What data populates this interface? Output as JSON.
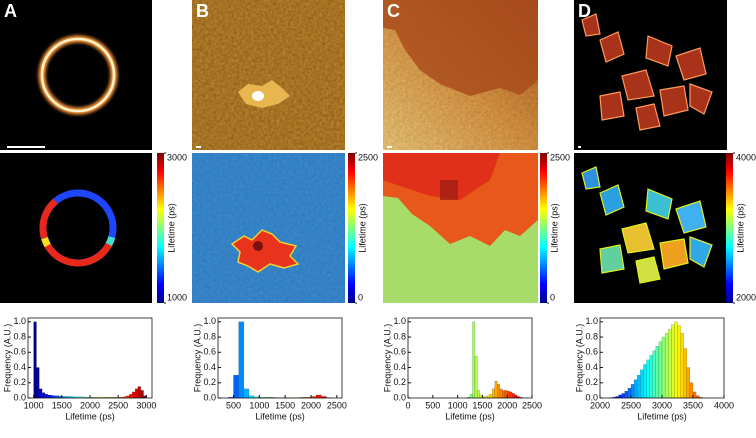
{
  "chart_data": [
    {
      "type": "histogram",
      "panel": "A",
      "xlabel": "Lifetime (ps)",
      "ylabel": "Frequency (A.U.)",
      "colormap": "jet",
      "colorbar": {
        "ticks": [
          1000,
          3000
        ],
        "label": "Lifetime (ps)"
      },
      "bins": [
        1000,
        1050,
        1100,
        1150,
        1200,
        1250,
        1300,
        1350,
        1400,
        1450,
        1500,
        1550,
        1600,
        1650,
        1700,
        1750,
        1800,
        1850,
        1900,
        1950,
        2000,
        2050,
        2100,
        2150,
        2200,
        2250,
        2300,
        2350,
        2400,
        2450,
        2500,
        2550,
        2600,
        2650,
        2700,
        2750,
        2800,
        2850,
        2900,
        2950,
        3000
      ],
      "values": [
        1.0,
        0.4,
        0.12,
        0.07,
        0.05,
        0.04,
        0.035,
        0.03,
        0.03,
        0.025,
        0.02,
        0.02,
        0.02,
        0.02,
        0.015,
        0.015,
        0.015,
        0.015,
        0.01,
        0.01,
        0.01,
        0.01,
        0.01,
        0.01,
        0.01,
        0.01,
        0.01,
        0.01,
        0.01,
        0.01,
        0.01,
        0.01,
        0.02,
        0.03,
        0.05,
        0.08,
        0.12,
        0.15,
        0.1,
        0.03
      ],
      "xlim": [
        900,
        3100
      ],
      "xticks": [
        1000,
        1500,
        2000,
        2500,
        3000
      ],
      "ylim": [
        0,
        1.05
      ],
      "yticks": [
        {
          "value": 0,
          "label": "0.0"
        },
        {
          "value": 0.2,
          "label": "0.2"
        },
        {
          "value": 0.4,
          "label": "0.4"
        },
        {
          "value": 0.6,
          "label": "0.6"
        },
        {
          "value": 0.8,
          "label": "0.8"
        },
        {
          "value": 1,
          "label": "1.0"
        }
      ]
    },
    {
      "type": "histogram",
      "panel": "B",
      "xlabel": "Lifetime (ps)",
      "ylabel": "Frequency (A.U.)",
      "colormap": "jet",
      "colorbar": {
        "ticks": [
          0,
          2500
        ],
        "label": "Lifetime (ps)"
      },
      "bins": [
        300,
        400,
        500,
        600,
        700,
        800,
        900,
        1000,
        1100,
        1200,
        1300,
        1400,
        1500,
        1600,
        1700,
        1800,
        1900,
        2000,
        2100,
        2200,
        2300,
        2400
      ],
      "values": [
        0,
        0.01,
        0.3,
        1.0,
        0.12,
        0.03,
        0.015,
        0.01,
        0.01,
        0.01,
        0.005,
        0.005,
        0.005,
        0.005,
        0.005,
        0.01,
        0.01,
        0.02,
        0.04,
        0.02,
        0.005
      ],
      "xlim": [
        200,
        2600
      ],
      "xticks": [
        500,
        1000,
        1500,
        2000,
        2500
      ],
      "ylim": [
        0,
        1.05
      ],
      "yticks": [
        {
          "value": 0,
          "label": "0.0"
        },
        {
          "value": 0.2,
          "label": "0.2"
        },
        {
          "value": 0.4,
          "label": "0.4"
        },
        {
          "value": 0.6,
          "label": "0.6"
        },
        {
          "value": 0.8,
          "label": "0.8"
        },
        {
          "value": 1,
          "label": "1.0"
        }
      ]
    },
    {
      "type": "histogram",
      "panel": "C",
      "xlabel": "Lifetime (ps)",
      "ylabel": "Frequency (A.U.)",
      "colormap": "jet",
      "colorbar": {
        "ticks": [
          0,
          2500
        ],
        "label": "Lifetime (ps)"
      },
      "bins": [
        1200,
        1250,
        1300,
        1350,
        1400,
        1450,
        1500,
        1550,
        1600,
        1650,
        1700,
        1750,
        1800,
        1850,
        1900,
        1950,
        2000,
        2050,
        2100,
        2150,
        2200,
        2250,
        2300
      ],
      "values": [
        0.01,
        0.05,
        1.0,
        0.55,
        0.1,
        0.04,
        0.02,
        0.02,
        0.03,
        0.05,
        0.12,
        0.22,
        0.18,
        0.12,
        0.1,
        0.1,
        0.09,
        0.08,
        0.06,
        0.04,
        0.02,
        0.01
      ],
      "xlim": [
        0,
        2500
      ],
      "xticks": [
        0,
        500,
        1000,
        1500,
        2000,
        2500
      ],
      "ylim": [
        0,
        1.05
      ],
      "yticks": [
        {
          "value": 0,
          "label": "0.0"
        },
        {
          "value": 0.2,
          "label": "0.2"
        },
        {
          "value": 0.4,
          "label": "0.4"
        },
        {
          "value": 0.6,
          "label": "0.6"
        },
        {
          "value": 0.8,
          "label": "0.8"
        },
        {
          "value": 1,
          "label": "1.0"
        }
      ]
    },
    {
      "type": "histogram",
      "panel": "D",
      "xlabel": "Lifetime (ps)",
      "ylabel": "Frequency (A.U.)",
      "colormap": "jet",
      "colorbar": {
        "ticks": [
          2000,
          4000
        ],
        "label": "Lifetime (ps)"
      },
      "bins": [
        2150,
        2200,
        2250,
        2300,
        2350,
        2400,
        2450,
        2500,
        2550,
        2600,
        2650,
        2700,
        2750,
        2800,
        2850,
        2900,
        2950,
        3000,
        3050,
        3100,
        3150,
        3200,
        3250,
        3300,
        3350,
        3400,
        3450,
        3500,
        3550,
        3600,
        3650
      ],
      "values": [
        0.005,
        0.01,
        0.02,
        0.04,
        0.06,
        0.09,
        0.13,
        0.18,
        0.24,
        0.3,
        0.37,
        0.44,
        0.5,
        0.56,
        0.62,
        0.68,
        0.74,
        0.8,
        0.85,
        0.9,
        0.96,
        1.0,
        0.95,
        0.85,
        0.65,
        0.4,
        0.2,
        0.08,
        0.03,
        0.01
      ],
      "xlim": [
        2000,
        4000
      ],
      "xticks": [
        2000,
        2500,
        3000,
        3500,
        4000
      ],
      "ylim": [
        0,
        1.05
      ],
      "yticks": [
        {
          "value": 0,
          "label": "0.0"
        },
        {
          "value": 0.2,
          "label": "0.2"
        },
        {
          "value": 0.4,
          "label": "0.4"
        },
        {
          "value": 0.6,
          "label": "0.6"
        },
        {
          "value": 0.8,
          "label": "0.8"
        },
        {
          "value": 1,
          "label": "1.0"
        }
      ]
    }
  ]
}
